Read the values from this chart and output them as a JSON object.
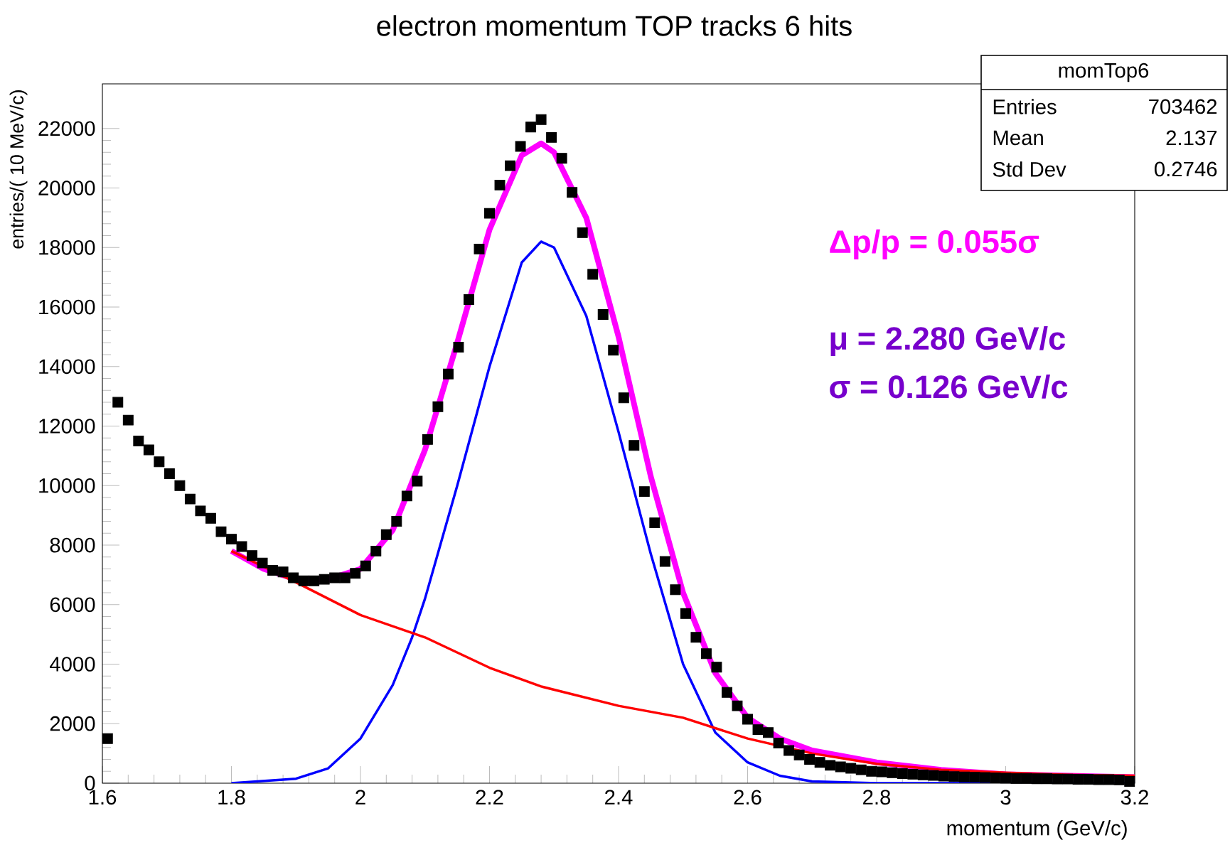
{
  "chart_data": {
    "type": "scatter",
    "title": "electron momentum TOP tracks 6 hits",
    "xlabel": "momentum (GeV/c)",
    "ylabel": "entries/( 10 MeV/c)",
    "xlim": [
      1.6,
      3.2
    ],
    "ylim": [
      0,
      23500
    ],
    "xticks": [
      1.6,
      1.8,
      2,
      2.2,
      2.4,
      2.6,
      2.8,
      3,
      3.2
    ],
    "yticks": [
      0,
      2000,
      4000,
      6000,
      8000,
      10000,
      12000,
      14000,
      16000,
      18000,
      20000,
      22000
    ],
    "grid": false,
    "annotations": [
      "momTop6",
      "Entries",
      "703462",
      "Mean",
      "2.137",
      "Std Dev",
      "0.2746",
      "Δp/p = 0.055σ",
      "μ = 2.280 GeV/c",
      "σ = 0.126 GeV/c"
    ],
    "series": [
      {
        "marker": "square",
        "color": "#000000",
        "x": [
          1.608,
          1.624,
          1.64,
          1.656,
          1.672,
          1.688,
          1.704,
          1.72,
          1.736,
          1.752,
          1.768,
          1.784,
          1.8,
          1.816,
          1.832,
          1.848,
          1.864,
          1.88,
          1.896,
          1.912,
          1.928,
          1.944,
          1.96,
          1.976,
          1.992,
          2.008,
          2.024,
          2.04,
          2.056,
          2.072,
          2.088,
          2.104,
          2.12,
          2.136,
          2.152,
          2.168,
          2.184,
          2.2,
          2.216,
          2.232,
          2.248,
          2.264,
          2.28,
          2.296,
          2.312,
          2.328,
          2.344,
          2.36,
          2.376,
          2.392,
          2.408,
          2.424,
          2.44,
          2.456,
          2.472,
          2.488,
          2.504,
          2.52,
          2.536,
          2.552,
          2.568,
          2.584,
          2.6,
          2.616,
          2.632,
          2.648,
          2.664,
          2.68,
          2.696,
          2.712,
          2.728,
          2.744,
          2.76,
          2.776,
          2.792,
          2.808,
          2.824,
          2.84,
          2.856,
          2.872,
          2.888,
          2.904,
          2.92,
          2.936,
          2.952,
          2.968,
          2.984,
          3.0,
          3.016,
          3.032,
          3.048,
          3.064,
          3.08,
          3.096,
          3.112,
          3.128,
          3.144,
          3.16,
          3.176,
          3.192
        ],
        "values": [
          1500,
          12800,
          12200,
          11500,
          11200,
          10800,
          10400,
          10000,
          9550,
          9150,
          8900,
          8450,
          8200,
          7950,
          7650,
          7400,
          7150,
          7100,
          6900,
          6800,
          6800,
          6850,
          6900,
          6900,
          7050,
          7300,
          7800,
          8350,
          8800,
          9650,
          10150,
          11550,
          12650,
          13750,
          14650,
          16250,
          17950,
          19150,
          20100,
          20750,
          21400,
          22050,
          22300,
          21700,
          21000,
          19850,
          18500,
          17100,
          15750,
          14550,
          12950,
          11350,
          9800,
          8750,
          7450,
          6500,
          5700,
          4900,
          4350,
          3900,
          3050,
          2600,
          2150,
          1800,
          1700,
          1350,
          1100,
          950,
          800,
          700,
          600,
          550,
          500,
          450,
          400,
          380,
          350,
          320,
          300,
          280,
          260,
          240,
          220,
          210,
          200,
          190,
          180,
          170,
          160,
          160,
          150,
          150,
          140,
          140,
          130,
          130,
          120,
          120,
          110,
          60
        ]
      },
      {
        "type": "line",
        "color": "#0000ff",
        "x": [
          1.8,
          1.9,
          1.95,
          2.0,
          2.05,
          2.08,
          2.1,
          2.15,
          2.2,
          2.25,
          2.28,
          2.3,
          2.35,
          2.4,
          2.45,
          2.5,
          2.55,
          2.6,
          2.65,
          2.7,
          2.8,
          3.2
        ],
        "values": [
          0,
          150,
          500,
          1500,
          3300,
          4900,
          6200,
          10000,
          14000,
          17500,
          18200,
          18000,
          15700,
          11800,
          7700,
          4000,
          1700,
          700,
          250,
          60,
          0,
          0
        ]
      },
      {
        "type": "line",
        "color": "#ff00ff",
        "x": [
          1.8,
          1.85,
          1.9,
          1.95,
          2.0,
          2.05,
          2.1,
          2.15,
          2.2,
          2.25,
          2.28,
          2.3,
          2.35,
          2.4,
          2.45,
          2.5,
          2.55,
          2.6,
          2.65,
          2.7,
          2.8,
          2.9,
          3.0,
          3.1,
          3.2
        ],
        "values": [
          7800,
          7200,
          6850,
          6850,
          7200,
          8500,
          11200,
          14800,
          18600,
          21100,
          21500,
          21200,
          19000,
          15000,
          10300,
          6400,
          3700,
          2200,
          1500,
          1100,
          700,
          450,
          300,
          250,
          200
        ]
      },
      {
        "type": "line",
        "color": "#ff0000",
        "x": [
          1.8,
          1.9,
          2.0,
          2.1,
          2.2,
          2.28,
          2.4,
          2.5,
          2.6,
          2.7,
          2.8,
          2.9,
          3.0,
          3.1,
          3.2
        ],
        "values": [
          7800,
          6750,
          5650,
          4900,
          3880,
          3250,
          2600,
          2200,
          1500,
          1000,
          650,
          450,
          350,
          280,
          250
        ]
      }
    ]
  }
}
